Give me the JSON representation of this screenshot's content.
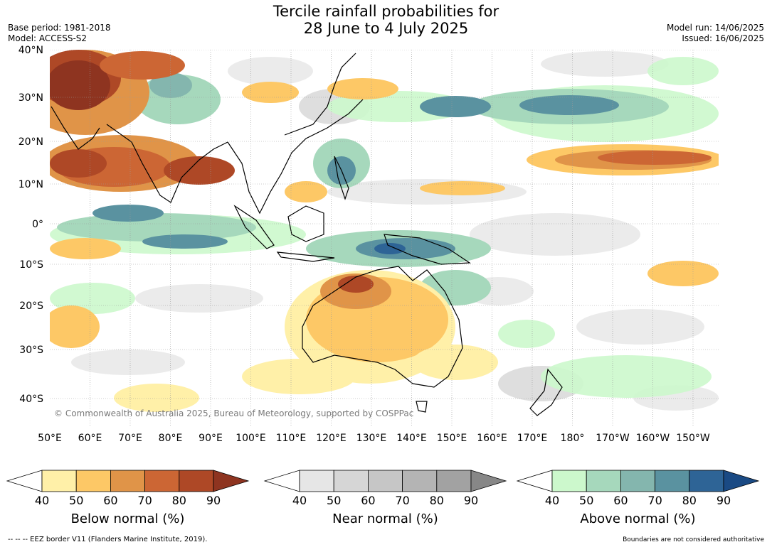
{
  "title": {
    "line1": "Tercile rainfall probabilities for",
    "line2": "28 June to 4 July 2025"
  },
  "meta": {
    "base_period": "Base period: 1981-2018",
    "model": "Model: ACCESS-S2",
    "model_run": "Model run: 14/06/2025",
    "issued": "Issued: 16/06/2025"
  },
  "lat_labels": [
    "40°N",
    "30°N",
    "20°N",
    "10°N",
    "0°",
    "10°S",
    "20°S",
    "30°S",
    "40°S"
  ],
  "lon_labels": [
    "50°E",
    "60°E",
    "70°E",
    "80°E",
    "90°E",
    "100°E",
    "110°E",
    "120°E",
    "130°E",
    "140°E",
    "150°E",
    "160°E",
    "170°E",
    "180°",
    "170°W",
    "160°W",
    "150°W"
  ],
  "copyright": "© Commonwealth of Australia 2025, Bureau of Meteorology, supported by COSPPac",
  "colorbars": [
    {
      "title": "Below normal (%)",
      "ticks": [
        "40",
        "50",
        "60",
        "70",
        "80",
        "90"
      ],
      "colors": [
        "#fff0a8",
        "#fdc866",
        "#e09448",
        "#cc6634",
        "#ae4826",
        "#8e3420"
      ]
    },
    {
      "title": "Near normal (%)",
      "ticks": [
        "40",
        "50",
        "60",
        "70",
        "80",
        "90"
      ],
      "colors": [
        "#e6e6e6",
        "#d6d6d6",
        "#c6c6c6",
        "#b4b4b4",
        "#a2a2a2",
        "#878787"
      ]
    },
    {
      "title": "Above normal (%)",
      "ticks": [
        "40",
        "50",
        "60",
        "70",
        "80",
        "90"
      ],
      "colors": [
        "#ccf8cc",
        "#a6d8bc",
        "#84b6ae",
        "#5a92a0",
        "#2e6496",
        "#1a4a84"
      ]
    }
  ],
  "footer": {
    "left": "--  --  -- EEZ border V11 (Flanders Marine Institute, 2019).",
    "right": "Boundaries are not considered authoritative"
  }
}
